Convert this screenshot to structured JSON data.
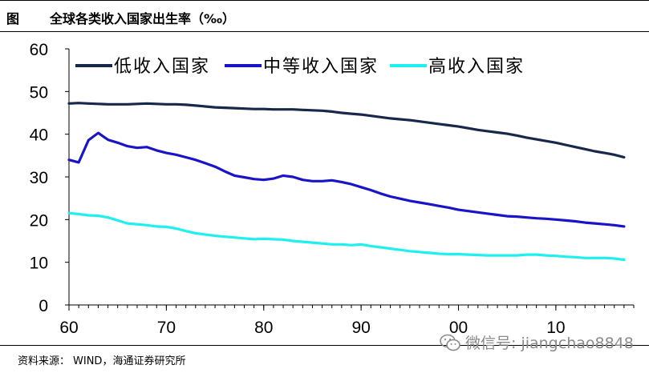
{
  "title": {
    "prefix": "图",
    "text": "全球各类收入国家出生率（‰）"
  },
  "source": {
    "label": "资料来源：",
    "text": "WIND，海通证券研究所"
  },
  "watermark": {
    "text": "微信号: jiangchao8848"
  },
  "colors": {
    "low": "#17284a",
    "middle": "#1a14c8",
    "high": "#1ef0f0"
  },
  "chart_data": {
    "type": "line",
    "title": "全球各类收入国家出生率（‰）",
    "xlabel": "",
    "ylabel": "",
    "x": [
      1960,
      1961,
      1962,
      1963,
      1964,
      1965,
      1966,
      1967,
      1968,
      1969,
      1970,
      1971,
      1972,
      1973,
      1974,
      1975,
      1976,
      1977,
      1978,
      1979,
      1980,
      1981,
      1982,
      1983,
      1984,
      1985,
      1986,
      1987,
      1988,
      1989,
      1990,
      1991,
      1992,
      1993,
      1994,
      1995,
      1996,
      1997,
      1998,
      1999,
      2000,
      2001,
      2002,
      2003,
      2004,
      2005,
      2006,
      2007,
      2008,
      2009,
      2010,
      2011,
      2012,
      2013,
      2014,
      2015,
      2016,
      2017
    ],
    "xlim": [
      1960,
      2018
    ],
    "ylim": [
      0,
      60
    ],
    "xticks": [
      1960,
      1970,
      1980,
      1990,
      2000,
      2010
    ],
    "xtick_labels": [
      "60",
      "70",
      "80",
      "90",
      "00",
      "10"
    ],
    "yticks": [
      0,
      10,
      20,
      30,
      40,
      50,
      60
    ],
    "ytick_labels": [
      "0",
      "10",
      "20",
      "30",
      "40",
      "50",
      "60"
    ],
    "legend_position": "top",
    "series": [
      {
        "name": "低收入国家",
        "color": "#17284a",
        "values": [
          47.2,
          47.3,
          47.2,
          47.1,
          47.0,
          47.0,
          47.0,
          47.1,
          47.2,
          47.1,
          47.0,
          47.0,
          46.9,
          46.7,
          46.5,
          46.3,
          46.2,
          46.1,
          46.0,
          45.9,
          45.9,
          45.8,
          45.8,
          45.8,
          45.7,
          45.6,
          45.5,
          45.3,
          45.0,
          44.8,
          44.6,
          44.3,
          44.0,
          43.7,
          43.5,
          43.3,
          43.0,
          42.7,
          42.4,
          42.1,
          41.8,
          41.4,
          41.0,
          40.7,
          40.4,
          40.1,
          39.7,
          39.2,
          38.8,
          38.4,
          38.0,
          37.5,
          37.0,
          36.5,
          36.0,
          35.6,
          35.2,
          34.6
        ]
      },
      {
        "name": "中等收入国家",
        "color": "#1a14c8",
        "values": [
          34.0,
          33.4,
          38.6,
          40.3,
          38.7,
          38.0,
          37.2,
          36.8,
          37.0,
          36.2,
          35.6,
          35.2,
          34.6,
          34.0,
          33.2,
          32.4,
          31.3,
          30.3,
          29.9,
          29.5,
          29.3,
          29.6,
          30.3,
          30.0,
          29.3,
          29.0,
          29.0,
          29.2,
          28.8,
          28.3,
          27.6,
          26.9,
          26.1,
          25.4,
          24.9,
          24.4,
          24.0,
          23.6,
          23.2,
          22.8,
          22.3,
          22.0,
          21.7,
          21.4,
          21.1,
          20.8,
          20.7,
          20.5,
          20.3,
          20.2,
          20.0,
          19.8,
          19.6,
          19.3,
          19.1,
          18.9,
          18.7,
          18.4
        ]
      },
      {
        "name": "高收入国家",
        "color": "#1ef0f0",
        "values": [
          21.5,
          21.3,
          21.0,
          20.9,
          20.5,
          19.8,
          19.1,
          18.9,
          18.7,
          18.4,
          18.3,
          17.9,
          17.3,
          16.8,
          16.5,
          16.2,
          16.0,
          15.8,
          15.6,
          15.4,
          15.5,
          15.4,
          15.3,
          15.0,
          14.8,
          14.6,
          14.4,
          14.2,
          14.2,
          14.0,
          14.2,
          13.8,
          13.5,
          13.2,
          12.9,
          12.6,
          12.4,
          12.2,
          12.0,
          11.9,
          11.9,
          11.8,
          11.7,
          11.6,
          11.6,
          11.6,
          11.6,
          11.8,
          11.8,
          11.6,
          11.5,
          11.3,
          11.2,
          11.0,
          11.0,
          11.0,
          10.9,
          10.6
        ]
      }
    ]
  }
}
